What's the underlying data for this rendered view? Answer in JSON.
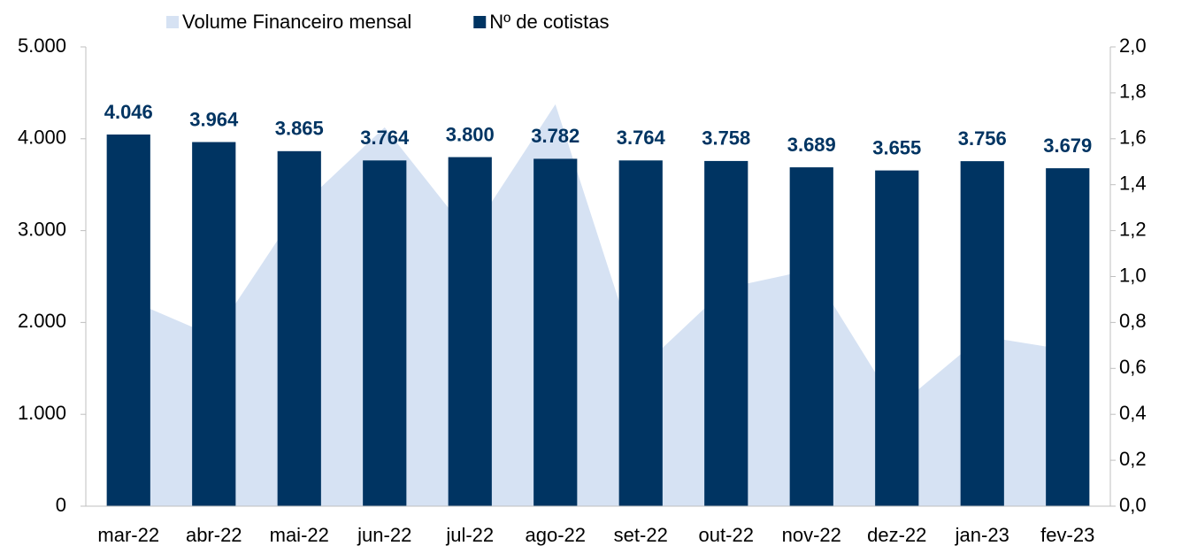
{
  "chart_data": {
    "type": "bar",
    "categories": [
      "mar-22",
      "abr-22",
      "mai-22",
      "jun-22",
      "jul-22",
      "ago-22",
      "set-22",
      "out-22",
      "nov-22",
      "dez-22",
      "jan-23",
      "fev-23"
    ],
    "series": [
      {
        "name": "Volume Financeiro mensal",
        "type": "area",
        "axis": "y2",
        "color": "#d6e2f3",
        "values": [
          0.9,
          0.74,
          1.3,
          1.65,
          1.18,
          1.75,
          0.6,
          0.95,
          1.03,
          0.43,
          0.74,
          0.68
        ]
      },
      {
        "name": "Nº de cotistas",
        "type": "bar",
        "axis": "y",
        "color": "#003462",
        "values": [
          4046,
          3964,
          3865,
          3764,
          3800,
          3782,
          3764,
          3758,
          3689,
          3655,
          3756,
          3679
        ],
        "value_labels": [
          "4.046",
          "3.964",
          "3.865",
          "3.764",
          "3.800",
          "3.782",
          "3.764",
          "3.758",
          "3.689",
          "3.655",
          "3.756",
          "3.679"
        ]
      }
    ],
    "ylim": [
      0,
      5000
    ],
    "yticks": [
      0,
      {
        "value": 1000,
        "label": "1.000"
      },
      {
        "value": 2000,
        "label": "2.000"
      },
      {
        "value": 3000,
        "label": "3.000"
      },
      {
        "value": 4000,
        "label": "4.000"
      },
      {
        "value": 5000,
        "label": "5.000"
      }
    ],
    "y2lim": [
      0,
      2.0
    ],
    "y2ticks": [
      {
        "value": 0,
        "label": "0,0"
      },
      {
        "value": 0.2,
        "label": "0,2"
      },
      {
        "value": 0.4,
        "label": "0,4"
      },
      {
        "value": 0.6,
        "label": "0,6"
      },
      {
        "value": 0.8,
        "label": "0,8"
      },
      {
        "value": 1.0,
        "label": "1,0"
      },
      {
        "value": 1.2,
        "label": "1,2"
      },
      {
        "value": 1.4,
        "label": "1,4"
      },
      {
        "value": 1.6,
        "label": "1,6"
      },
      {
        "value": 1.8,
        "label": "1,8"
      },
      {
        "value": 2.0,
        "label": "2,0"
      }
    ],
    "legend": "top"
  }
}
